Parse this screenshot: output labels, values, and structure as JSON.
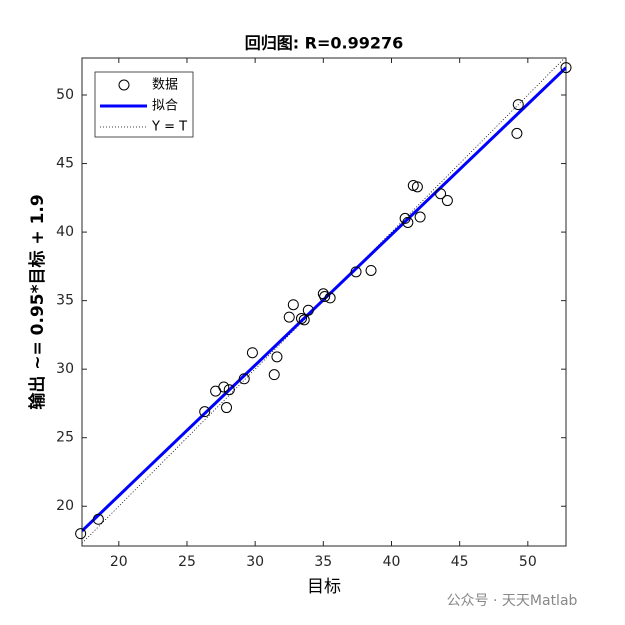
{
  "chart_data": {
    "type": "scatter",
    "title": "回归图: R=0.99276",
    "xlabel": "目标",
    "ylabel": "输出 ~= 0.95*目标 + 1.9",
    "xlim": [
      17.3,
      52.8
    ],
    "ylim": [
      17.1,
      52.7
    ],
    "xticks": [
      20,
      25,
      30,
      35,
      40,
      45,
      50
    ],
    "yticks": [
      20,
      25,
      30,
      35,
      40,
      45,
      50
    ],
    "legend": "upper-left",
    "series": [
      {
        "name": "数据",
        "mode": "marker",
        "color": "#000000",
        "x": [
          17.2,
          18.5,
          26.3,
          27.1,
          27.7,
          28.1,
          27.9,
          29.2,
          29.8,
          31.4,
          31.6,
          32.5,
          32.8,
          33.4,
          33.6,
          33.9,
          35.0,
          35.1,
          35.5,
          37.4,
          38.5,
          41.0,
          41.2,
          41.6,
          41.9,
          42.1,
          43.6,
          44.1,
          49.2,
          49.3,
          52.8
        ],
        "values": [
          18.0,
          19.05,
          26.9,
          28.4,
          28.7,
          28.5,
          27.2,
          29.3,
          31.2,
          29.6,
          30.9,
          33.8,
          34.7,
          33.7,
          33.6,
          34.3,
          35.5,
          35.3,
          35.2,
          37.1,
          37.2,
          41.0,
          40.7,
          43.4,
          43.3,
          41.1,
          42.8,
          42.3,
          47.2,
          49.3,
          52.0
        ]
      },
      {
        "name": "拟合",
        "mode": "line",
        "color": "#0000ff",
        "x": [
          17.3,
          52.8
        ],
        "values": [
          18.2,
          52.0
        ]
      },
      {
        "name": "Y = T",
        "mode": "dotted",
        "color": "#000000",
        "x": [
          17.3,
          52.8
        ],
        "values": [
          17.3,
          52.8
        ]
      }
    ]
  },
  "watermark": "公众号 · 天天Matlab"
}
